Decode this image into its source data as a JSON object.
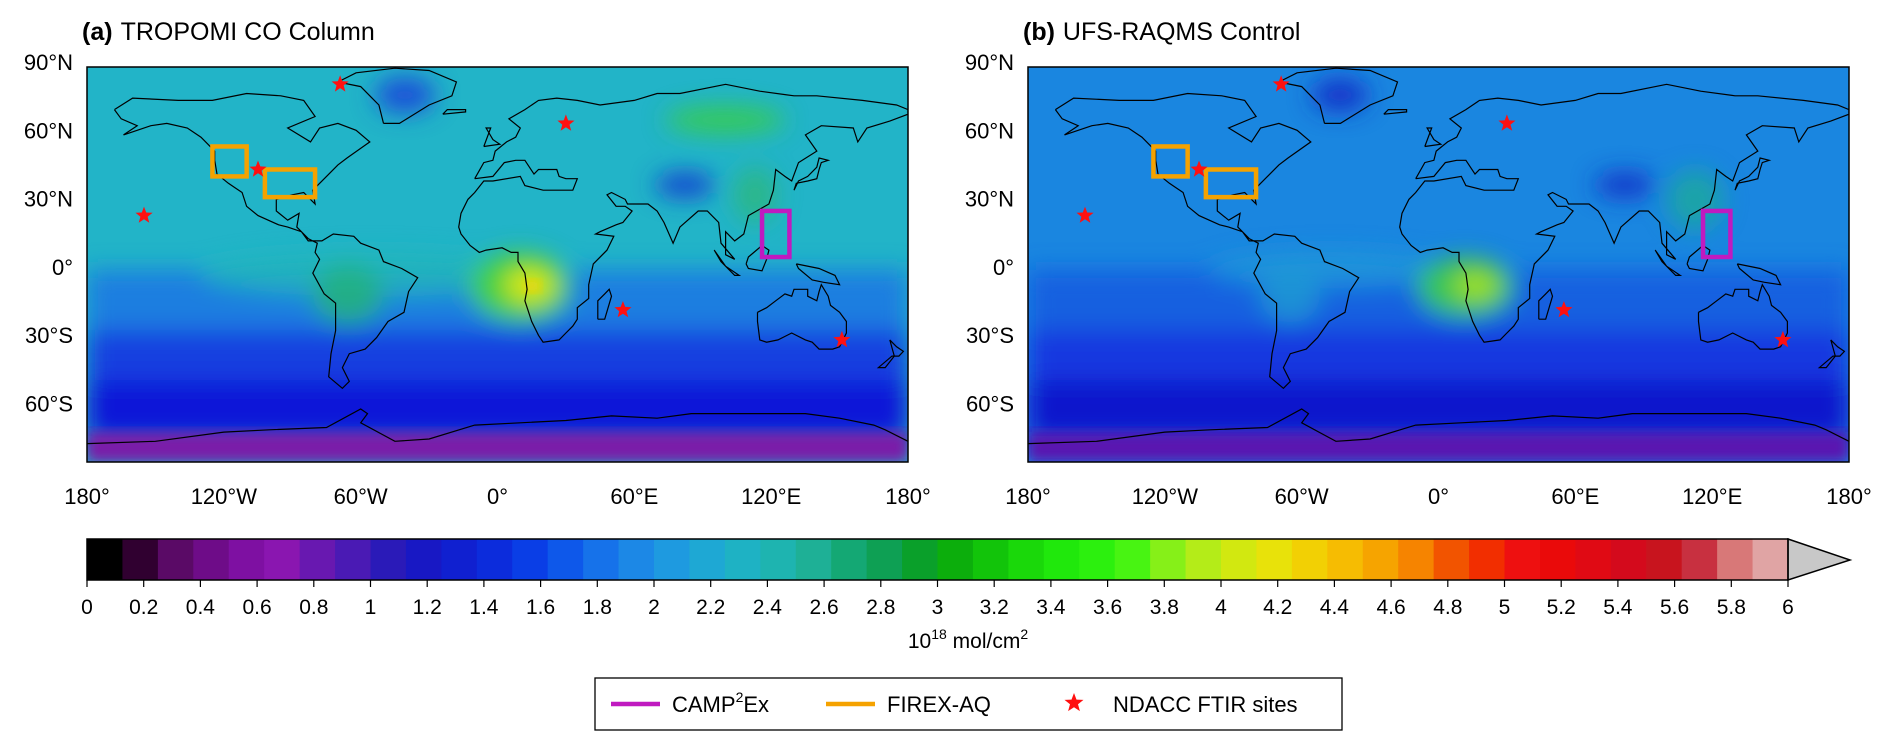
{
  "panels": [
    {
      "letter": "(a)",
      "title": "TROPOMI CO Column",
      "field": {
        "background": "#22b4c8",
        "ocean_band": "#1e7ee0",
        "south_band": "#1440e0",
        "south_ocean": "#1018d8",
        "antarctica": "#7a1aa8"
      }
    },
    {
      "letter": "(b)",
      "title": "UFS-RAQMS Control",
      "field": {
        "background": "#1a86e0",
        "ocean_band": "#1660e0",
        "south_band": "#1238e0",
        "south_ocean": "#0e18cc",
        "antarctica": "#5a14b0"
      }
    }
  ],
  "lat_labels": [
    "90°N",
    "60°N",
    "30°N",
    "0°",
    "30°S",
    "60°S"
  ],
  "lat_values": [
    90,
    60,
    30,
    0,
    -30,
    -60
  ],
  "lon_labels": [
    "180°",
    "120°W",
    "60°W",
    "0°",
    "60°E",
    "120°E",
    "180°"
  ],
  "lon_values": [
    -180,
    -120,
    -60,
    0,
    60,
    120,
    180
  ],
  "map_extent": {
    "lon": [
      -180,
      180
    ],
    "lat": [
      -90,
      90
    ]
  },
  "ndacc_sites": [
    {
      "lon": -69,
      "lat": 77
    },
    {
      "lon": 30,
      "lat": 60
    },
    {
      "lon": -105,
      "lat": 40
    },
    {
      "lon": -155,
      "lat": 20
    },
    {
      "lon": 55,
      "lat": -21
    },
    {
      "lon": 151,
      "lat": -34
    }
  ],
  "regions": [
    {
      "name": "FIREX-AQ",
      "lon": [
        -125,
        -110
      ],
      "lat": [
        37,
        50
      ],
      "color": "#f5a200"
    },
    {
      "name": "FIREX-AQ",
      "lon": [
        -102,
        -80
      ],
      "lat": [
        28,
        40
      ],
      "color": "#f5a200"
    },
    {
      "name": "CAMP2Ex",
      "lon": [
        116,
        128
      ],
      "lat": [
        2,
        22
      ],
      "color": "#c01ac0"
    }
  ],
  "colorbar": {
    "tick_labels": [
      "0",
      "0.2",
      "0.4",
      "0.6",
      "0.8",
      "1",
      "1.2",
      "1.4",
      "1.6",
      "1.8",
      "2",
      "2.2",
      "2.4",
      "2.6",
      "2.8",
      "3",
      "3.2",
      "3.4",
      "3.6",
      "3.8",
      "4",
      "4.2",
      "4.4",
      "4.6",
      "4.8",
      "5",
      "5.2",
      "5.4",
      "5.6",
      "5.8",
      "6"
    ],
    "unit_base": "10",
    "unit_exp": "18",
    "unit_rest": " mol/cm",
    "unit_sq": "2",
    "colors": [
      "#000000",
      "#300030",
      "#5a0a66",
      "#6e0c88",
      "#7e10a2",
      "#8a16b0",
      "#6818b0",
      "#4a1ab4",
      "#2a1ab8",
      "#1818c4",
      "#1020d0",
      "#0c2cdc",
      "#0a3ee6",
      "#0e58ea",
      "#1672ea",
      "#1c88e6",
      "#1e9ae0",
      "#1ea8d4",
      "#1eb2c4",
      "#1eb4b0",
      "#1eb096",
      "#14a874",
      "#0ea054",
      "#0aa02a",
      "#0cae0c",
      "#12c40a",
      "#1ad80a",
      "#20e80c",
      "#2cf00e",
      "#48f412",
      "#86f018",
      "#b4ec18",
      "#d2e810",
      "#e8e20a",
      "#f2d004",
      "#f6bc02",
      "#f6a400",
      "#f68400",
      "#f25400",
      "#f22e00",
      "#ee1010",
      "#ea0a0a",
      "#e00a14",
      "#d40a1c",
      "#c8141e",
      "#c83040",
      "#d87878",
      "#e0a4a4"
    ],
    "triangle_color": "#c8c8c8"
  },
  "legend": [
    {
      "label_pre": "CAMP",
      "label_sup": "2",
      "label_post": "Ex",
      "color": "#c01ac0",
      "kind": "line"
    },
    {
      "label_pre": "FIREX-AQ",
      "label_sup": "",
      "label_post": "",
      "color": "#f5a200",
      "kind": "line"
    },
    {
      "label_pre": "NDACC FTIR sites",
      "label_sup": "",
      "label_post": "",
      "color": "#ff1010",
      "kind": "star"
    }
  ]
}
